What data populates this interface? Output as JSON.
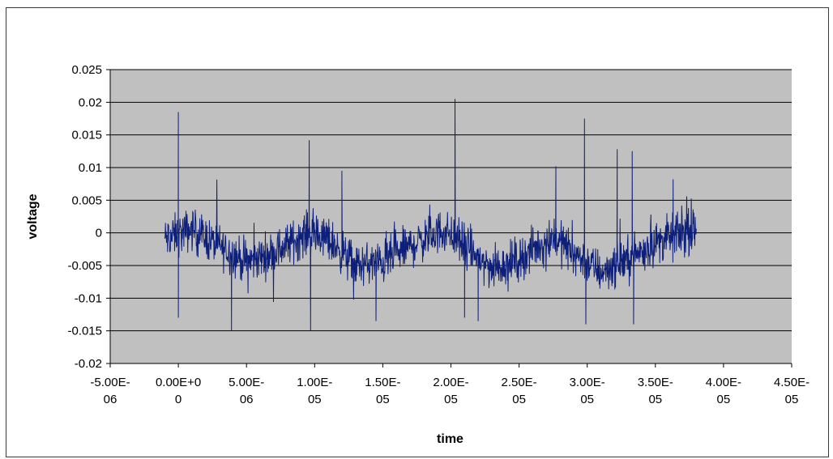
{
  "chart_data": {
    "type": "line",
    "title": "",
    "xlabel": "time",
    "ylabel": "voltage",
    "xlim": [
      -5e-06,
      4.5e-05
    ],
    "ylim": [
      -0.02,
      0.025
    ],
    "x_ticks": [
      {
        "value": -5e-06,
        "label": [
          "-5.00E-",
          "06"
        ]
      },
      {
        "value": 0,
        "label": [
          "0.00E+0",
          "0"
        ]
      },
      {
        "value": 5e-06,
        "label": [
          "5.00E-",
          "06"
        ]
      },
      {
        "value": 1e-05,
        "label": [
          "1.00E-",
          "05"
        ]
      },
      {
        "value": 1.5e-05,
        "label": [
          "1.50E-",
          "05"
        ]
      },
      {
        "value": 2e-05,
        "label": [
          "2.00E-",
          "05"
        ]
      },
      {
        "value": 2.5e-05,
        "label": [
          "2.50E-",
          "05"
        ]
      },
      {
        "value": 3e-05,
        "label": [
          "3.00E-",
          "05"
        ]
      },
      {
        "value": 3.5e-05,
        "label": [
          "3.50E-",
          "05"
        ]
      },
      {
        "value": 4e-05,
        "label": [
          "4.00E-",
          "05"
        ]
      },
      {
        "value": 4.5e-05,
        "label": [
          "4.50E-",
          "05"
        ]
      }
    ],
    "y_ticks": [
      {
        "value": 0.025,
        "label": "0.025"
      },
      {
        "value": 0.02,
        "label": "0.02"
      },
      {
        "value": 0.015,
        "label": "0.015"
      },
      {
        "value": 0.01,
        "label": "0.01"
      },
      {
        "value": 0.005,
        "label": "0.005"
      },
      {
        "value": 0,
        "label": "0"
      },
      {
        "value": -0.005,
        "label": "-0.005"
      },
      {
        "value": -0.01,
        "label": "-0.01"
      },
      {
        "value": -0.015,
        "label": "-0.015"
      },
      {
        "value": -0.02,
        "label": "-0.02"
      }
    ],
    "grid": "horizontal",
    "legend": "none",
    "colors": {
      "plot_area": "#c0c0c0",
      "series": "#0d1f7a",
      "gridline": "#000000"
    },
    "series": [
      {
        "x_start": -1e-06,
        "x_end": 3.8e-05,
        "baseline_points": [
          [
            -1e-06,
            -0.001
          ],
          [
            1e-06,
            0.0005
          ],
          [
            3e-06,
            -0.002
          ],
          [
            5e-06,
            -0.0045
          ],
          [
            7e-06,
            -0.003
          ],
          [
            9.5e-06,
            0.0
          ],
          [
            1.1e-05,
            -0.001
          ],
          [
            1.3e-05,
            -0.005
          ],
          [
            1.5e-05,
            -0.0045
          ],
          [
            1.7e-05,
            -0.002
          ],
          [
            1.95e-05,
            0.0005
          ],
          [
            2.1e-05,
            -0.002
          ],
          [
            2.3e-05,
            -0.0055
          ],
          [
            2.5e-05,
            -0.004
          ],
          [
            2.75e-05,
            -0.0005
          ],
          [
            2.9e-05,
            -0.003
          ],
          [
            3.1e-05,
            -0.006
          ],
          [
            3.3e-05,
            -0.004
          ],
          [
            3.5e-05,
            -0.0015
          ],
          [
            3.7e-05,
            0.0
          ],
          [
            3.8e-05,
            0.0
          ]
        ],
        "noise_amplitude": 0.003,
        "spikes": [
          [
            0.0,
            0.0185
          ],
          [
            0.0,
            -0.013
          ],
          [
            3.9e-06,
            -0.015
          ],
          [
            9.6e-06,
            0.0142
          ],
          [
            9.7e-06,
            -0.015
          ],
          [
            1.2e-05,
            0.0095
          ],
          [
            1.45e-05,
            -0.0135
          ],
          [
            2.03e-05,
            0.0205
          ],
          [
            2.1e-05,
            -0.013
          ],
          [
            2.2e-05,
            -0.0135
          ],
          [
            2.77e-05,
            0.0102
          ],
          [
            2.98e-05,
            0.0175
          ],
          [
            2.99e-05,
            -0.014
          ],
          [
            3.22e-05,
            0.0128
          ],
          [
            3.33e-05,
            0.0125
          ],
          [
            3.34e-05,
            -0.014
          ],
          [
            3.63e-05,
            0.0082
          ]
        ]
      }
    ]
  }
}
